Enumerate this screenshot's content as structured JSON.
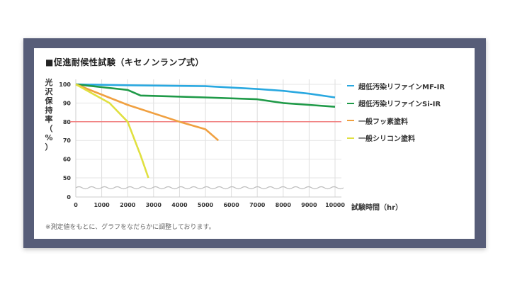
{
  "title": "■促進耐候性試験（キセノンランプ式）",
  "note": "※測定値をもとに、グラフをなだらかに調整しております。",
  "chart_data": {
    "type": "line",
    "title": "促進耐候性試験（キセノンランプ式）",
    "xlabel": "試験時間（hr）",
    "ylabel": "光沢保持率（%）",
    "ylabel_chars": [
      "光",
      "沢",
      "保",
      "持",
      "率",
      "（",
      "%",
      "）"
    ],
    "x_ticks": [
      0,
      1000,
      2000,
      3000,
      4000,
      5000,
      6000,
      7000,
      8000,
      9000,
      10000
    ],
    "y_ticks": [
      0,
      50,
      60,
      70,
      80,
      90,
      100
    ],
    "xlim": [
      0,
      10000
    ],
    "ylim": [
      0,
      100
    ],
    "axis_break": "between 0 and 50 (wavy line)",
    "grid": true,
    "legend_position": "right",
    "reference_line": {
      "y": 80,
      "color": "#f08080"
    },
    "series": [
      {
        "name": "超低汚染リファインMF-IR",
        "color": "#29a8e0",
        "x": [
          0,
          2000,
          5000,
          7000,
          8000,
          9000,
          10000
        ],
        "values": [
          100,
          99.5,
          99,
          97.5,
          96.5,
          95,
          93
        ]
      },
      {
        "name": "超低汚染リファインSi-IR",
        "color": "#1f9a48",
        "x": [
          0,
          2000,
          2500,
          5000,
          7000,
          8000,
          9000,
          10000
        ],
        "values": [
          100,
          97,
          94,
          93,
          92,
          90,
          89,
          88
        ]
      },
      {
        "name": "一般フッ素塗料",
        "color": "#f0a040",
        "x": [
          0,
          2000,
          4000,
          5000,
          5500
        ],
        "values": [
          100,
          89,
          80,
          76,
          70
        ]
      },
      {
        "name": "一般シリコン塗料",
        "color": "#e0e040",
        "x": [
          0,
          1300,
          2000,
          2500,
          2800
        ],
        "values": [
          100,
          90,
          80,
          62,
          50
        ]
      }
    ]
  }
}
